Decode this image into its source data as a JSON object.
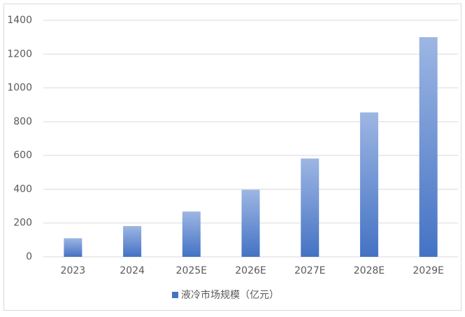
{
  "chart_data": {
    "type": "bar",
    "categories": [
      "2023",
      "2024",
      "2025E",
      "2026E",
      "2027E",
      "2028E",
      "2029E"
    ],
    "series": [
      {
        "name": "液冷市场规模（亿元）",
        "color": "#4472c4",
        "values": [
          110,
          182,
          268,
          397,
          582,
          855,
          1300
        ]
      }
    ],
    "ylim": [
      0,
      1400
    ],
    "yticks": [
      0,
      200,
      400,
      600,
      800,
      1000,
      1200,
      1400
    ],
    "grid": true,
    "legend": "bottom"
  }
}
